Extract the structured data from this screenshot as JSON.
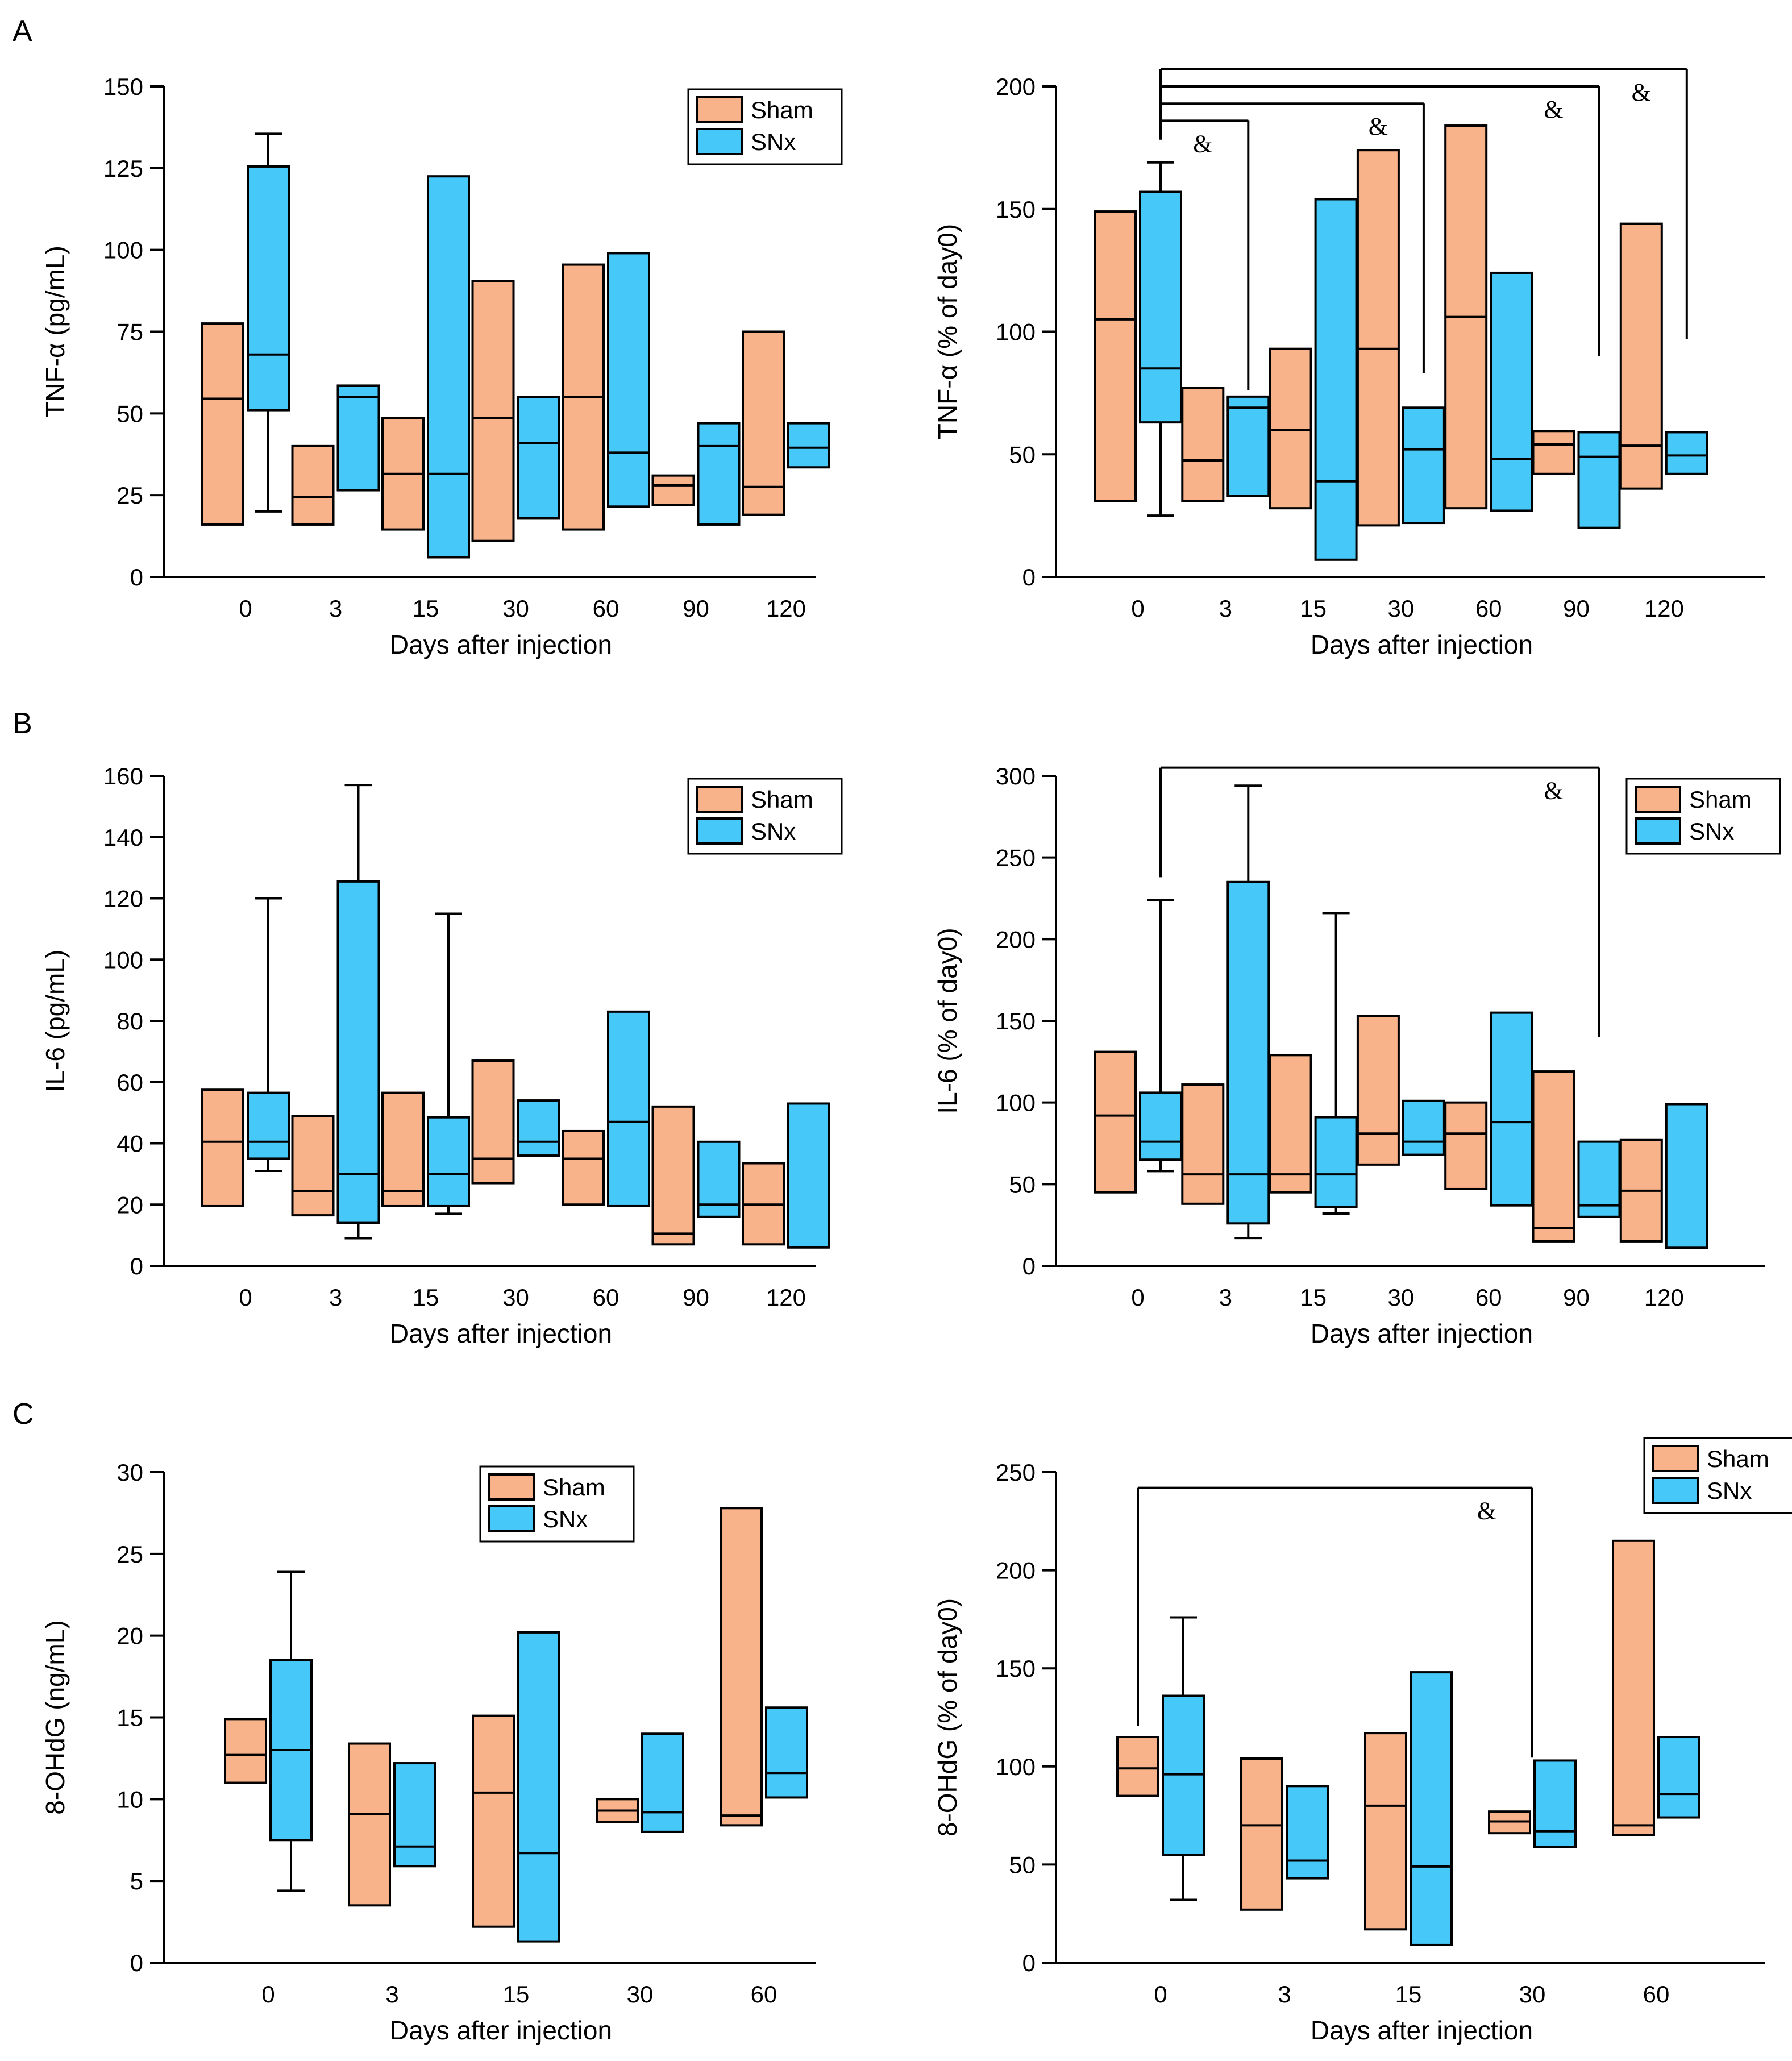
{
  "colors": {
    "Sham": "#F9B38A",
    "SNx": "#46C8F8"
  },
  "panel_labels": [
    "A",
    "B",
    "C"
  ],
  "chart_data": [
    {
      "id": "A-abs",
      "type": "box",
      "panel": "A",
      "ylabel": "TNF-α (pg/mL)",
      "xlabel": "Days after injection",
      "ylim": [
        0,
        150
      ],
      "yticks": [
        0,
        25,
        50,
        75,
        100,
        125,
        150
      ],
      "categories": [
        "0",
        "3",
        "15",
        "30",
        "60",
        "90",
        "120"
      ],
      "legend": [
        "Sham",
        "SNx"
      ],
      "legend_loc": "top-right",
      "series": [
        {
          "name": "Sham",
          "boxes": [
            [
              16,
              54.5,
              77.5
            ],
            [
              16,
              24.5,
              40
            ],
            [
              14.5,
              31.5,
              48.5
            ],
            [
              11,
              48.5,
              90.5
            ],
            [
              14.5,
              55,
              95.5
            ],
            [
              22,
              28,
              31
            ],
            [
              19,
              27.5,
              75
            ]
          ]
        },
        {
          "name": "SNx",
          "boxes": [
            [
              51,
              68,
              125.5
            ],
            [
              26.5,
              55,
              58.5
            ],
            [
              6,
              31.5,
              122.5
            ],
            [
              18,
              41,
              55
            ],
            [
              21.5,
              38,
              99
            ],
            [
              16,
              40,
              47
            ],
            [
              33.5,
              39.5,
              47
            ]
          ]
        }
      ],
      "whiskers": [
        {
          "series": "SNx",
          "category": "0",
          "low": 20,
          "high": 135.5
        }
      ],
      "significance": []
    },
    {
      "id": "A-rel",
      "type": "box",
      "panel": "A",
      "ylabel": "TNF-α (% of day0)",
      "xlabel": "Days after injection",
      "ylim": [
        0,
        200
      ],
      "yticks": [
        0,
        50,
        100,
        150,
        200
      ],
      "categories": [
        "0",
        "3",
        "15",
        "30",
        "60",
        "90",
        "120"
      ],
      "legend": [],
      "legend_loc": "none",
      "series": [
        {
          "name": "Sham",
          "boxes": [
            [
              31,
              105,
              149
            ],
            [
              31,
              47.5,
              77
            ],
            [
              28,
              60,
              93
            ],
            [
              21,
              93,
              174
            ],
            [
              28,
              106,
              184
            ],
            [
              42,
              54,
              59.5
            ],
            [
              36,
              53.5,
              144
            ]
          ]
        },
        {
          "name": "SNx",
          "boxes": [
            [
              63,
              85,
              157
            ],
            [
              33,
              69,
              73.5
            ],
            [
              7,
              39,
              154
            ],
            [
              22,
              52,
              69
            ],
            [
              27,
              48,
              124
            ],
            [
              20,
              49,
              59
            ],
            [
              42,
              49.5,
              59
            ]
          ]
        }
      ],
      "whiskers": [
        {
          "series": "SNx",
          "category": "0",
          "low": 25,
          "high": 169
        }
      ],
      "significance": [
        {
          "to": "3",
          "label": "&",
          "bar": 186
        },
        {
          "to": "30",
          "label": "&",
          "bar": 193
        },
        {
          "to": "90",
          "label": "&",
          "bar": 200
        },
        {
          "to": "120",
          "label": "&",
          "bar": 207
        }
      ]
    },
    {
      "id": "B-abs",
      "type": "box",
      "panel": "B",
      "ylabel": "IL-6 (pg/mL)",
      "xlabel": "Days after injection",
      "ylim": [
        0,
        160
      ],
      "yticks": [
        0,
        20,
        40,
        60,
        80,
        100,
        120,
        140,
        160
      ],
      "categories": [
        "0",
        "3",
        "15",
        "30",
        "60",
        "90",
        "120"
      ],
      "legend": [
        "Sham",
        "SNx"
      ],
      "legend_loc": "top-right",
      "series": [
        {
          "name": "Sham",
          "boxes": [
            [
              19.5,
              40.5,
              57.5
            ],
            [
              16.5,
              24.5,
              49
            ],
            [
              19.5,
              24.5,
              56.5
            ],
            [
              27,
              35,
              67
            ],
            [
              20,
              35,
              44
            ],
            [
              7,
              10.5,
              52
            ],
            [
              7,
              20,
              33.5
            ]
          ]
        },
        {
          "name": "SNx",
          "boxes": [
            [
              35,
              40.5,
              56.5
            ],
            [
              14,
              30,
              125.5
            ],
            [
              19.5,
              30,
              48.5
            ],
            [
              36,
              40.5,
              54
            ],
            [
              19.5,
              47,
              83
            ],
            [
              16,
              20,
              40.5
            ],
            [
              6,
              6,
              53
            ]
          ]
        }
      ],
      "whiskers": [
        {
          "series": "SNx",
          "category": "0",
          "low": 31,
          "high": 120
        },
        {
          "series": "SNx",
          "category": "3",
          "low": 9,
          "high": 157
        },
        {
          "series": "SNx",
          "category": "15",
          "low": 17,
          "high": 115
        }
      ],
      "significance": []
    },
    {
      "id": "B-rel",
      "type": "box",
      "panel": "B",
      "ylabel": "IL-6 (% of day0)",
      "xlabel": "Days after injection",
      "ylim": [
        0,
        300
      ],
      "yticks": [
        0,
        50,
        100,
        150,
        200,
        250,
        300
      ],
      "categories": [
        "0",
        "3",
        "15",
        "30",
        "60",
        "90",
        "120"
      ],
      "legend": [
        "Sham",
        "SNx"
      ],
      "legend_loc": "top-right",
      "series": [
        {
          "name": "Sham",
          "boxes": [
            [
              45,
              92,
              131
            ],
            [
              38,
              56,
              111
            ],
            [
              45,
              56,
              129
            ],
            [
              62,
              81,
              153
            ],
            [
              47,
              81,
              100
            ],
            [
              15,
              23,
              119
            ],
            [
              15,
              46,
              77
            ]
          ]
        },
        {
          "name": "SNx",
          "boxes": [
            [
              65,
              76,
              106
            ],
            [
              26,
              56,
              235
            ],
            [
              36,
              56,
              91
            ],
            [
              68,
              76,
              101
            ],
            [
              37,
              88,
              155
            ],
            [
              30,
              37,
              76
            ],
            [
              11,
              11,
              99
            ]
          ]
        }
      ],
      "whiskers": [
        {
          "series": "SNx",
          "category": "0",
          "low": 58,
          "high": 224
        },
        {
          "series": "SNx",
          "category": "3",
          "low": 17,
          "high": 294
        },
        {
          "series": "SNx",
          "category": "15",
          "low": 32,
          "high": 216
        }
      ],
      "significance": [
        {
          "to": "90",
          "label": "&",
          "bar": 305
        }
      ]
    },
    {
      "id": "C-abs",
      "type": "box",
      "panel": "C",
      "ylabel": "8-OHdG (ng/mL)",
      "xlabel": "Days after injection",
      "ylim": [
        0,
        30
      ],
      "yticks": [
        0,
        5,
        10,
        15,
        20,
        25,
        30
      ],
      "categories": [
        "0",
        "3",
        "15",
        "30",
        "60"
      ],
      "legend": [
        "Sham",
        "SNx"
      ],
      "legend_loc": "top-center",
      "series": [
        {
          "name": "Sham",
          "boxes": [
            [
              11,
              12.7,
              14.9
            ],
            [
              3.5,
              9.1,
              13.4
            ],
            [
              2.2,
              10.4,
              15.1
            ],
            [
              8.6,
              9.3,
              10
            ],
            [
              8.4,
              9,
              27.8
            ]
          ]
        },
        {
          "name": "SNx",
          "boxes": [
            [
              7.5,
              13,
              18.5
            ],
            [
              5.9,
              7.1,
              12.2
            ],
            [
              1.3,
              6.7,
              20.2
            ],
            [
              8,
              9.2,
              14
            ],
            [
              10.1,
              11.6,
              15.6
            ]
          ]
        }
      ],
      "whiskers": [
        {
          "series": "SNx",
          "category": "0",
          "low": 4.4,
          "high": 23.9
        }
      ],
      "significance": []
    },
    {
      "id": "C-rel",
      "type": "box",
      "panel": "C",
      "ylabel": "8-OHdG (% of day0)",
      "xlabel": "Days after injection",
      "ylim": [
        0,
        250
      ],
      "yticks": [
        0,
        50,
        100,
        150,
        200,
        250
      ],
      "categories": [
        "0",
        "3",
        "15",
        "30",
        "60"
      ],
      "legend": [
        "Sham",
        "SNx"
      ],
      "legend_loc": "top-right",
      "series": [
        {
          "name": "Sham",
          "boxes": [
            [
              85,
              99,
              115
            ],
            [
              27,
              70,
              104
            ],
            [
              17,
              80,
              117
            ],
            [
              66,
              72,
              77
            ],
            [
              65,
              70,
              215
            ]
          ]
        },
        {
          "name": "SNx",
          "boxes": [
            [
              55,
              96,
              136
            ],
            [
              43,
              52,
              90
            ],
            [
              9,
              49,
              148
            ],
            [
              59,
              67,
              103
            ],
            [
              74,
              86,
              115
            ]
          ]
        }
      ],
      "whiskers": [
        {
          "series": "SNx",
          "category": "0",
          "low": 32,
          "high": 176
        }
      ],
      "significance": [
        {
          "fromSeries": "Sham",
          "to": "30",
          "label": "&",
          "bar": 242
        }
      ]
    }
  ]
}
